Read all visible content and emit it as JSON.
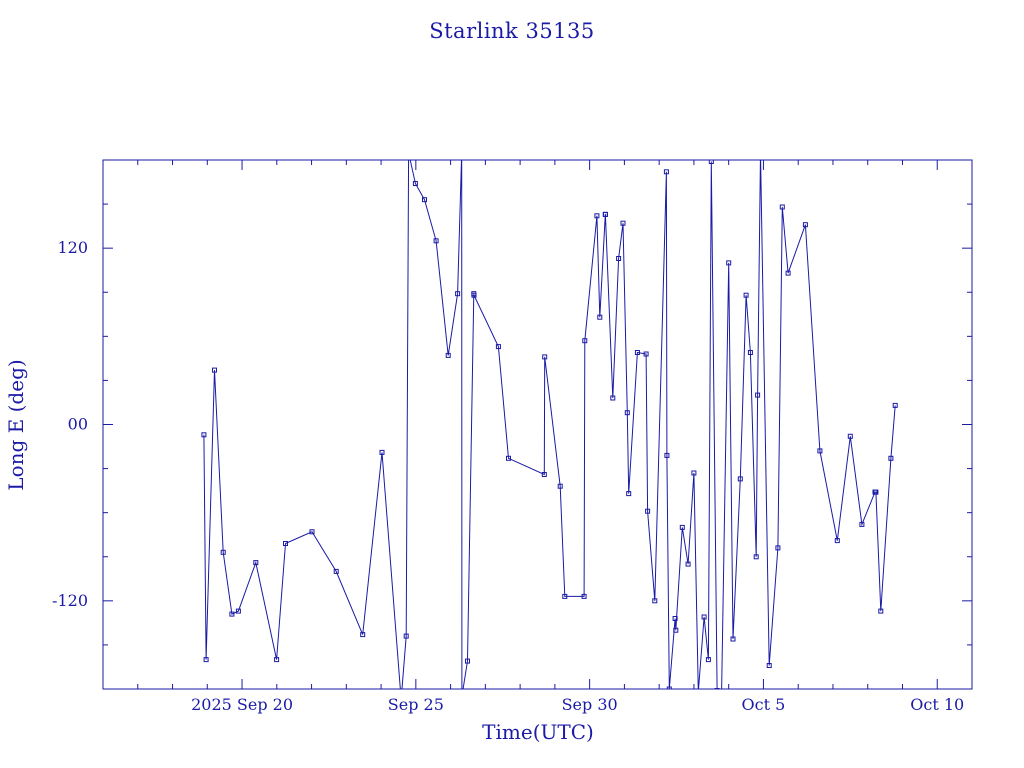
{
  "chart_data": {
    "type": "line",
    "title": "Starlink 35135",
    "xlabel": "Time(UTC)",
    "ylabel": "Long E (deg)",
    "x_unit": "days",
    "xlim": [
      "2025-09-16",
      "2025-10-11"
    ],
    "ylim": [
      -180,
      180
    ],
    "x_ticks": [
      {
        "x": "2025-09-20",
        "label": "2025 Sep 20"
      },
      {
        "x": "2025-09-25",
        "label": "Sep 25"
      },
      {
        "x": "2025-09-30",
        "label": "Sep 30"
      },
      {
        "x": "2025-10-05",
        "label": "Oct  5"
      },
      {
        "x": "2025-10-10",
        "label": "Oct 10"
      }
    ],
    "y_ticks": [
      {
        "y": 120,
        "label": "120"
      },
      {
        "y": 0,
        "label": "00"
      },
      {
        "y": -120,
        "label": "-120"
      }
    ],
    "y_minor_step": 30,
    "grid": false,
    "legend": "none",
    "line_color": "#1a1aa6",
    "series": [
      {
        "x": [
          "2025-09-18T21:40",
          "2025-09-18T23:10",
          "2025-09-19T05:00",
          "2025-09-19T11:00",
          "2025-09-19T17:00",
          "2025-09-19T21:30",
          "2025-09-20T09:30",
          "2025-09-20T23:50",
          "2025-09-21T06:00",
          "2025-09-22T00:20",
          "2025-09-22T17:00",
          "2025-09-23T11:20",
          "2025-09-24T00:40",
          "2025-09-24T13:40",
          "2025-09-24T14:00",
          "2025-09-24T17:20",
          "2025-09-24T19:00",
          "2025-09-24T23:40",
          "2025-09-25T06:00",
          "2025-09-25T14:00",
          "2025-09-25T22:20",
          "2025-09-26T04:50",
          "2025-09-26T07:40",
          "2025-09-26T07:50",
          "2025-09-26T11:40",
          "2025-09-26T16:00",
          "2025-09-26T16:10",
          "2025-09-27T09:00",
          "2025-09-27T16:00",
          "2025-09-28T16:40",
          "2025-09-28T17:00",
          "2025-09-29T03:40",
          "2025-09-29T06:50",
          "2025-09-29T20:10",
          "2025-09-29T20:40",
          "2025-09-30T05:00",
          "2025-09-30T07:00",
          "2025-09-30T10:50",
          "2025-09-30T10:51",
          "2025-09-30T16:00",
          "2025-09-30T20:00",
          "2025-09-30T23:00",
          "2025-10-01T02:00",
          "2025-10-01T03:00",
          "2025-10-01T09:00",
          "2025-10-01T15:00",
          "2025-10-01T16:00",
          "2025-10-01T21:00",
          "2025-10-02T05:00",
          "2025-10-02T05:20",
          "2025-10-02T07:00",
          "2025-10-02T11:00",
          "2025-10-02T11:30",
          "2025-10-02T16:00",
          "2025-10-02T20:00",
          "2025-10-03T00:00",
          "2025-10-03T03:00",
          "2025-10-03T07:00",
          "2025-10-03T10:00",
          "2025-10-03T12:00",
          "2025-10-03T16:00",
          "2025-10-03T19:00",
          "2025-10-04T00:00",
          "2025-10-04T03:00",
          "2025-10-04T08:00",
          "2025-10-04T12:00",
          "2025-10-04T15:00",
          "2025-10-04T19:00",
          "2025-10-04T20:00",
          "2025-10-04T22:00",
          "2025-10-05T04:00",
          "2025-10-05T10:00",
          "2025-10-05T13:00",
          "2025-10-05T17:00",
          "2025-10-06T05:00",
          "2025-10-06T15:00",
          "2025-10-07T03:00",
          "2025-10-07T12:00",
          "2025-10-07T20:00",
          "2025-10-08T05:00",
          "2025-10-08T05:40",
          "2025-10-08T09:00",
          "2025-10-08T16:00",
          "2025-10-08T19:00"
        ],
        "values": [
          -7,
          -160,
          37,
          -87,
          -129,
          -127,
          -94,
          -160,
          -81,
          -73,
          -100,
          -143,
          -19,
          -185,
          -185,
          -144,
          185,
          164,
          153,
          125,
          47,
          89,
          185,
          -185,
          -161,
          89,
          88,
          53,
          -23,
          -34,
          46,
          -42,
          -117,
          -117,
          57,
          142,
          73,
          143,
          143,
          18,
          113,
          137,
          8,
          -47,
          49,
          48,
          -59,
          -120,
          172,
          -21,
          -180,
          -132,
          -140,
          -70,
          -95,
          -33,
          -182,
          -131,
          -160,
          179,
          -181,
          -190,
          110,
          -146,
          -37,
          88,
          49,
          -90,
          20,
          185,
          -164,
          -84,
          148,
          103,
          136,
          -18,
          -79,
          -8,
          -68,
          -46,
          -46,
          -127,
          -23,
          13
        ]
      }
    ]
  }
}
